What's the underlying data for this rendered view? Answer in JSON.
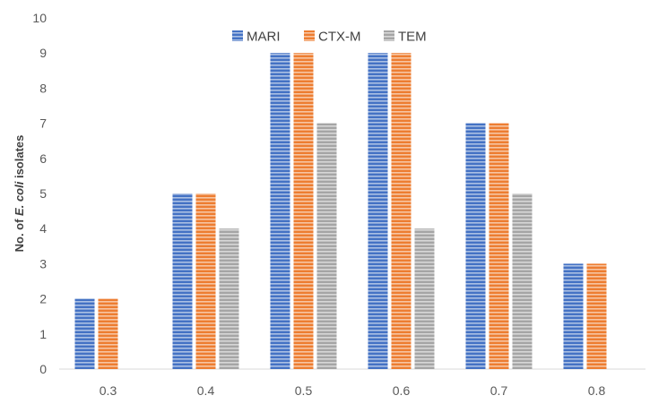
{
  "chart_data": {
    "type": "bar",
    "title": "",
    "xlabel": "",
    "ylabel_parts": [
      "No. of ",
      "E. coli",
      " isolates"
    ],
    "categories": [
      "0.3",
      "0.4",
      "0.5",
      "0.6",
      "0.7",
      "0.8"
    ],
    "series": [
      {
        "name": "MARI",
        "values": [
          2,
          5,
          9,
          9,
          7,
          3
        ],
        "color": "#4472C4"
      },
      {
        "name": "CTX-M",
        "values": [
          2,
          5,
          9,
          9,
          7,
          3
        ],
        "color": "#ED7D31"
      },
      {
        "name": "TEM",
        "values": [
          0,
          4,
          7,
          4,
          5,
          0
        ],
        "color": "#A5A5A5"
      }
    ],
    "ylim": [
      0,
      10
    ],
    "yticks": [
      "0",
      "1",
      "2",
      "3",
      "4",
      "5",
      "6",
      "7",
      "8",
      "9",
      "10"
    ],
    "legend_position": "top",
    "grid": false
  }
}
